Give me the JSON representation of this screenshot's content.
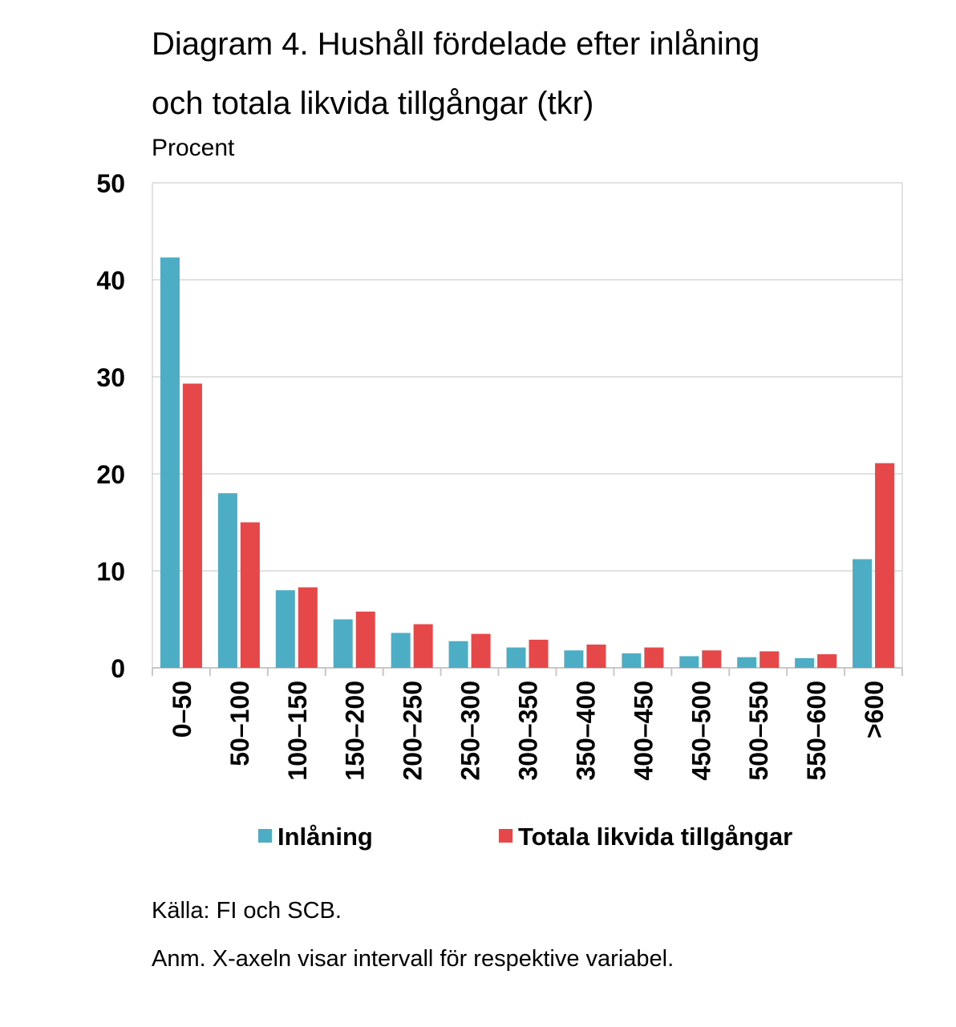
{
  "chart_data": {
    "type": "bar",
    "title_line1": "Diagram 4. Hushåll fördelade efter inlåning",
    "title_line2": "och totala likvida tillgångar (tkr)",
    "ylabel": "Procent",
    "xlabel": "",
    "ylim": [
      0,
      50
    ],
    "yticks": [
      "0",
      "10",
      "20",
      "30",
      "40",
      "50"
    ],
    "grid": true,
    "legend_position": "bottom",
    "categories": [
      "0–50",
      "50–100",
      "100–150",
      "150–200",
      "200–250",
      "250–300",
      "300–350",
      "350–400",
      "400–450",
      "450–500",
      "500–550",
      "550–600",
      ">600"
    ],
    "series": [
      {
        "name": "Inlåning",
        "color": "#4dadc4",
        "values": [
          42.3,
          18.0,
          8.0,
          5.0,
          3.6,
          2.75,
          2.1,
          1.8,
          1.5,
          1.2,
          1.1,
          1.0,
          11.2
        ]
      },
      {
        "name": "Totala likvida tillgångar",
        "color": "#e6484a",
        "values": [
          29.3,
          15.0,
          8.3,
          5.8,
          4.5,
          3.5,
          2.9,
          2.4,
          2.1,
          1.8,
          1.7,
          1.4,
          21.1
        ]
      }
    ]
  },
  "notes": {
    "source": "Källa: FI och SCB.",
    "remark": "Anm. X-axeln visar intervall för respektive variabel."
  }
}
